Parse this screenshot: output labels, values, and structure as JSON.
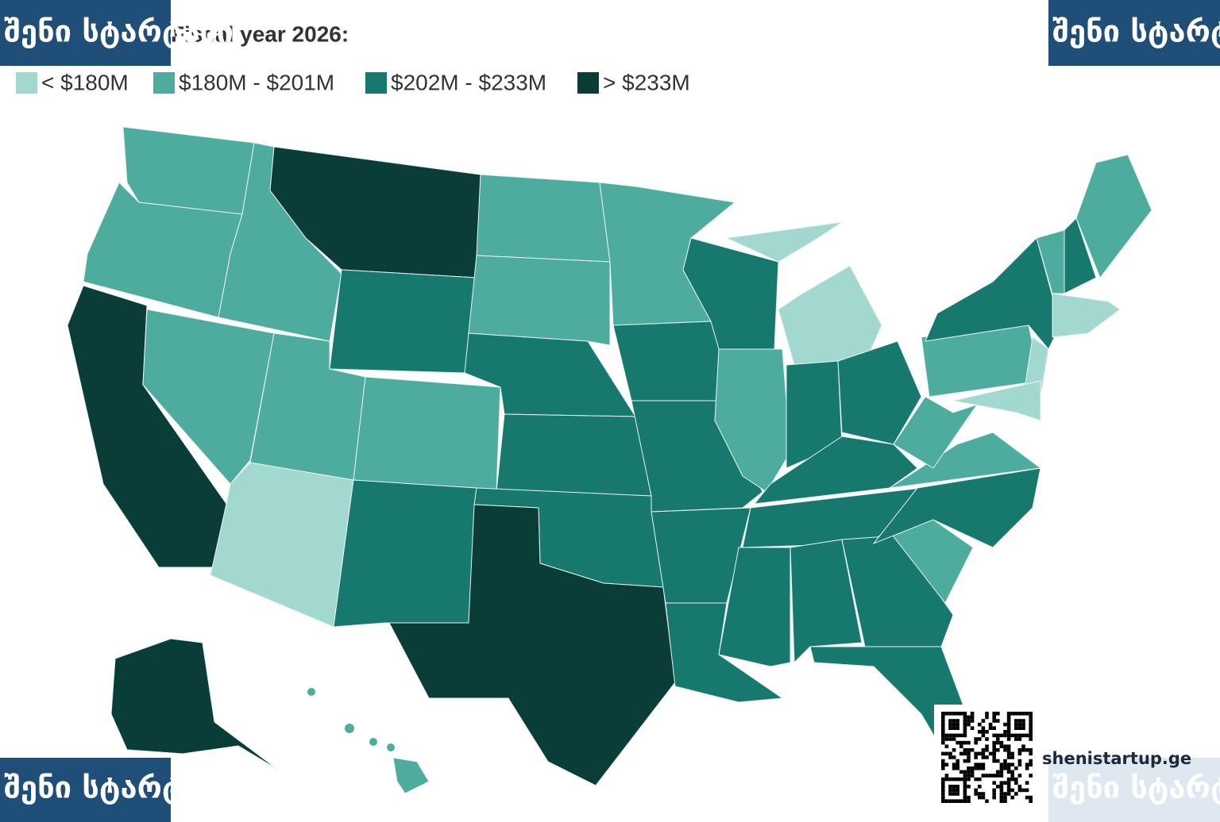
{
  "title": "Fiscal year 2026:",
  "legend": [
    {
      "label": "< $180M",
      "color": "#a3d8d0"
    },
    {
      "label": "$180M - $201M",
      "color": "#4eac9f"
    },
    {
      "label": "$202M - $233M",
      "color": "#17796d"
    },
    {
      "label": "> $233M",
      "color": "#0b3d38"
    }
  ],
  "region_classes": [
    1,
    1,
    3,
    1,
    1,
    3,
    2,
    1,
    0,
    1,
    2,
    1,
    1,
    2,
    2,
    2,
    3,
    1,
    2,
    2,
    2,
    2,
    2,
    1,
    0,
    0,
    2,
    2,
    2,
    2,
    2,
    2,
    2,
    2,
    1,
    2,
    1,
    1,
    1,
    2,
    0,
    0,
    1,
    2,
    1,
    0,
    3,
    1
  ],
  "banner": "შენი სტარტაპი",
  "watermark": "shenistartup.ge"
}
